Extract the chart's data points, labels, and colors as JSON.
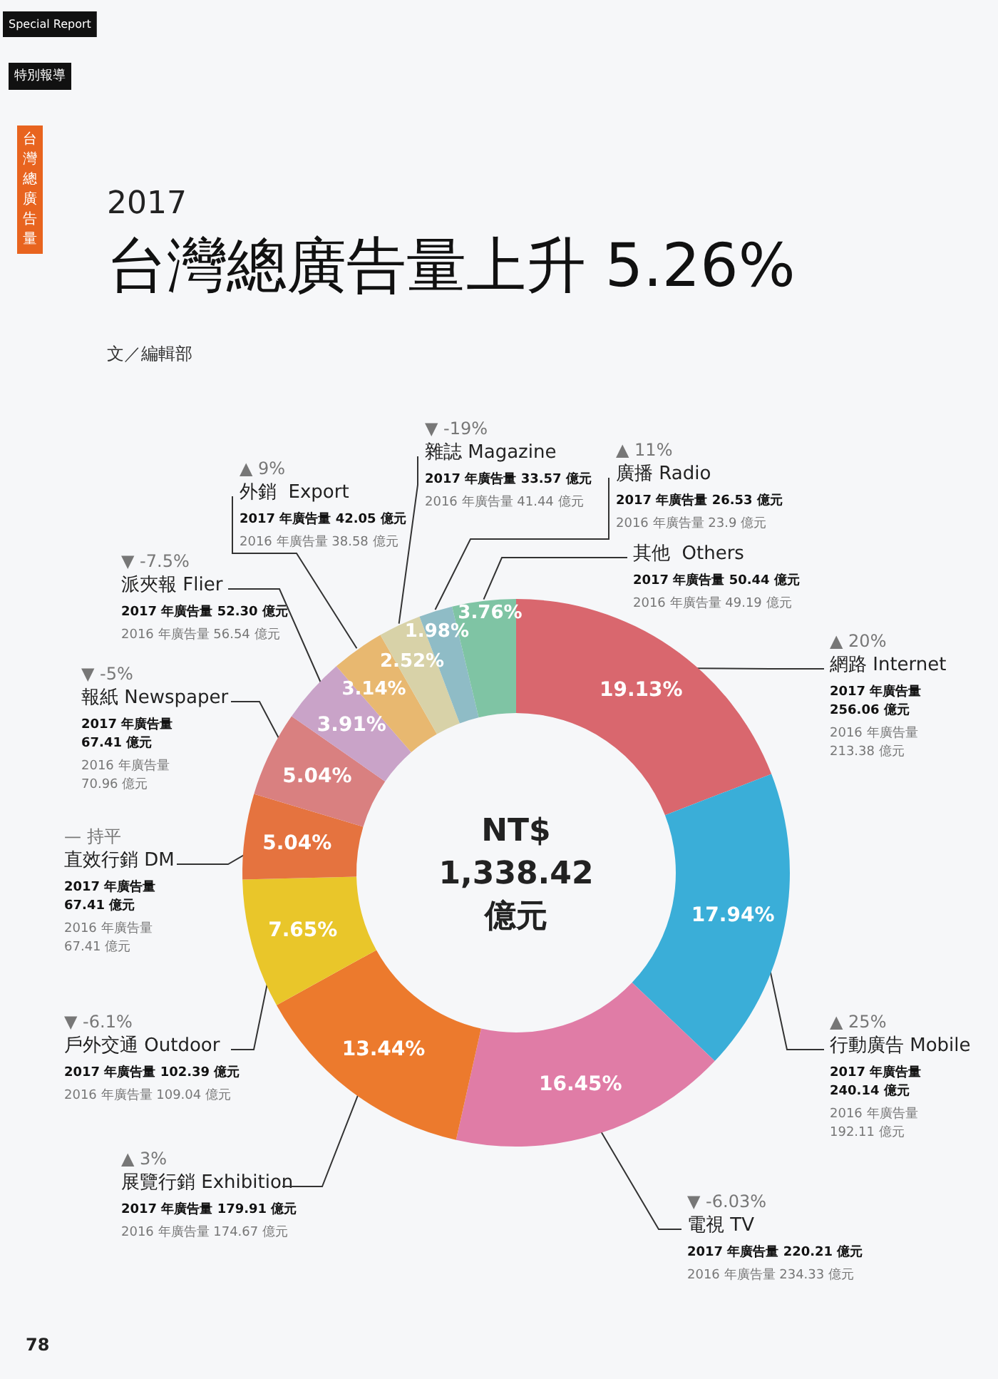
{
  "chart_data": {
    "type": "donut",
    "title": "台灣總廣告量上升 5.26%",
    "categories": [
      "網路 Internet",
      "行動廣告 Mobile",
      "電視 TV",
      "展覽行銷 Exhibition",
      "戶外交通 Outdoor",
      "直效行銷 DM",
      "報紙 Newspaper",
      "派夾報 Flier",
      "外銷  Export",
      "雜誌 Magazine",
      "廣播 Radio",
      "其他  Others"
    ],
    "values": [
      19.13,
      17.94,
      16.45,
      13.44,
      7.65,
      5.04,
      5.04,
      3.91,
      3.14,
      2.52,
      1.98,
      3.76
    ],
    "value_labels": [
      "19.13%",
      "17.94%",
      "16.45%",
      "13.44%",
      "7.65%",
      "5.04%",
      "5.04%",
      "3.91%",
      "3.14%",
      "2.52%",
      "1.98%",
      "3.76%"
    ],
    "colors": [
      "#d9676e",
      "#3aaed8",
      "#e07ca6",
      "#ec7a2d",
      "#e9c62a",
      "#e5733f",
      "#d98080",
      "#c9a3c8",
      "#e8b870",
      "#d8d2a8",
      "#8fbcc6",
      "#7fc4a4"
    ],
    "legend": false,
    "annotations": [
      "2017",
      "文／編輯部",
      "NT$\n1,338.42\n億元",
      "Special Report",
      "特別報導",
      "台灣總廣告量",
      "78",
      {
        "text": "▲ 20%",
        "x": "網路 Internet"
      },
      {
        "text": "2017 年廣告量\n256.06 億元",
        "x": "網路 Internet"
      },
      {
        "text": "2016 年廣告量\n213.38 億元",
        "x": "網路 Internet"
      },
      {
        "text": "▲ 25%",
        "x": "行動廣告 Mobile"
      },
      {
        "text": "2017 年廣告量\n240.14 億元",
        "x": "行動廣告 Mobile"
      },
      {
        "text": "2016 年廣告量\n192.11 億元",
        "x": "行動廣告 Mobile"
      },
      {
        "text": "▼ -6.03%",
        "x": "電視 TV"
      },
      {
        "text": "2017 年廣告量 220.21 億元",
        "x": "電視 TV"
      },
      {
        "text": "2016 年廣告量 234.33 億元",
        "x": "電視 TV"
      },
      {
        "text": "▲ 3%",
        "x": "展覽行銷 Exhibition"
      },
      {
        "text": "2017 年廣告量 179.91 億元",
        "x": "展覽行銷 Exhibition"
      },
      {
        "text": "2016 年廣告量 174.67 億元",
        "x": "展覽行銷 Exhibition"
      },
      {
        "text": "▼ -6.1%",
        "x": "戶外交通 Outdoor"
      },
      {
        "text": "2017 年廣告量 102.39 億元",
        "x": "戶外交通 Outdoor"
      },
      {
        "text": "2016 年廣告量 109.04 億元",
        "x": "戶外交通 Outdoor"
      },
      {
        "text": "— 持平",
        "x": "直效行銷 DM"
      },
      {
        "text": "2017 年廣告量\n67.41 億元",
        "x": "直效行銷 DM"
      },
      {
        "text": "2016 年廣告量\n67.41 億元",
        "x": "直效行銷 DM"
      },
      {
        "text": "▼ -5%",
        "x": "報紙 Newspaper"
      },
      {
        "text": "2017 年廣告量\n67.41 億元",
        "x": "報紙 Newspaper"
      },
      {
        "text": "2016 年廣告量\n70.96 億元",
        "x": "報紙 Newspaper"
      },
      {
        "text": "▼ -7.5%",
        "x": "派夾報 Flier"
      },
      {
        "text": "2017 年廣告量 52.30 億元",
        "x": "派夾報 Flier"
      },
      {
        "text": "2016 年廣告量 56.54 億元",
        "x": "派夾報 Flier"
      },
      {
        "text": "▲ 9%",
        "x": "外銷  Export"
      },
      {
        "text": "2017 年廣告量 42.05 億元",
        "x": "外銷  Export"
      },
      {
        "text": "2016 年廣告量 38.58 億元",
        "x": "外銷  Export"
      },
      {
        "text": "▼ -19%",
        "x": "雜誌 Magazine"
      },
      {
        "text": "2017 年廣告量 33.57 億元",
        "x": "雜誌 Magazine"
      },
      {
        "text": "2016 年廣告量 41.44 億元",
        "x": "雜誌 Magazine"
      },
      {
        "text": "▲ 11%",
        "x": "廣播 Radio"
      },
      {
        "text": "2017 年廣告量 26.53 億元",
        "x": "廣播 Radio"
      },
      {
        "text": "2016 年廣告量 23.9 億元",
        "x": "廣播 Radio"
      },
      {
        "text": "2017 年廣告量 50.44 億元",
        "x": "其他  Others"
      },
      {
        "text": "2016 年廣告量 49.19 億元",
        "x": "其他  Others"
      }
    ]
  }
}
